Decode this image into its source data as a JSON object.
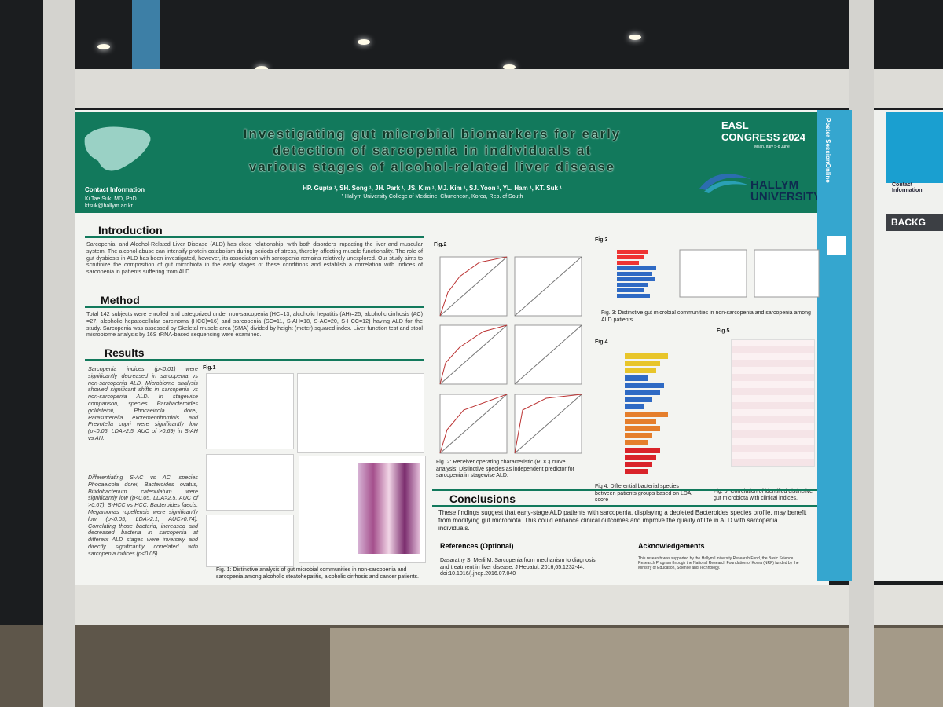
{
  "header": {
    "title_lines": [
      "Investigating gut microbial biomarkers for early",
      "detection of sarcopenia in individuals at",
      "various stages of alcohol-related liver disease"
    ],
    "authors": "HP. Gupta ¹, SH. Song ¹, JH. Park ¹, JS. Kim ¹, MJ. Kim ¹, SJ. Yoon ¹, YL. Ham ¹, KT. Suk ¹",
    "affiliation": "¹ Hallym University College of Medicine, Chuncheon, Korea, Rep. of South",
    "contact_heading": "Contact Information",
    "contact_lines": [
      "Ki Tae Suk, MD, PhD.",
      "ktsuk@hallym.ac.kr"
    ],
    "congress": "EASL CONGRESS 2024",
    "congress_place": "Milan, Italy 5-8 June",
    "university": "HALLYM UNIVERSITY"
  },
  "side_strip": "Poster SessionOnline",
  "introduction": {
    "heading": "Introduction",
    "text": "Sarcopenia, and Alcohol-Related Liver Disease (ALD) has close relationship, with both disorders impacting the liver and muscular system. The alcohol abuse can intensify protein catabolism during periods of stress, thereby affecting muscle functionality. The role of gut dysbiosis in ALD has been investigated, however, its association with sarcopenia remains relatively unexplored. Our study aims to scrutinize the composition of gut microbiota in the early stages of these conditions and establish a correlation with indices of sarcopenia in patients suffering from ALD."
  },
  "method": {
    "heading": "Method",
    "text": "Total 142 subjects were enrolled and categorized under non-sarcopenia (HC=13, alcoholic hepatitis (AH)=25, alcoholic cirrhosis (AC) =27, alcoholic hepatocellular carcinoma (HCC)=16) and sarcopenia (SC=11, S-AH=18, S-AC=20, S-HCC=12) having ALD for the study. Sarcopenia was assessed by Skeletal muscle area (SMA) divided by height (meter) squared index. Liver function test and stool microbiome analysis by 16S rRNA-based sequencing were examined."
  },
  "results": {
    "heading": "Results",
    "paragraphs": [
      "Sarcopenia indices (p<0.01) were significantly decreased in sarcopenia vs non-sarcopenia ALD. Microbiome analysis showed significant shifts in sarcopenia vs non-sarcopenia ALD. In stagewise comparison, species Parabacteroides goldsteinii, Phocaeicola dorei, Parasutterella excrementihominis and Prevotella copri were significantly low (p<0.05, LDA>2.5, AUC of >0.69) in S-AH vs AH.",
      "Differentiating S-AC vs AC, species Phocaeicola dorei, Bacteroides ovatus, Bifidobacterium catenulatum were significantly low (p<0.05, LDA>2.5, AUC of >0.67). S-HCC vs HCC, Bacteroides faecis, Megamonas rupellensis were significantly low (p<0.05, LDA>2.1, AUC>0.74). Correlating those bacteria, increased and decreased bacteria in sarcopenia at different ALD stages were inversely and directly significantly correlated with sarcopenia indices (p<0.05).."
    ]
  },
  "figures": [
    {
      "label": "Fig.1",
      "caption": "Fig. 1: Distinctive analysis of gut microbial communities in non-sarcopenia and sarcopenia among alcoholic steatohepatitis, alcoholic cirrhosis and cancer patients."
    },
    {
      "label": "Fig.2",
      "caption": "Fig. 2: Receiver operating characteristic (ROC) curve analysis: Distinctive species as independent predictor for sarcopenia in stagewise ALD."
    },
    {
      "label": "Fig.3",
      "caption": "Fig. 3: Distinctive gut microbial communities in non-sarcopenia and sarcopenia among ALD patients."
    },
    {
      "label": "Fig.4",
      "caption": "Fig 4: Differential bacterial species between patients groups based on LDA score"
    },
    {
      "label": "Fig.5",
      "caption": "Fig. 5: Correlation of identified distinctive gut microbiota with clinical indices."
    }
  ],
  "conclusions": {
    "heading": "Conclusions",
    "text": "These findings suggest that early-stage ALD patients with sarcopenia, displaying a depleted Bacteroides species profile, may benefit from modifying gut microbiota. This could enhance clinical outcomes and improve the quality of life in ALD with sarcopenia individuals."
  },
  "references": {
    "heading": "References (Optional)",
    "text": "Dasarathy S, Merli M. Sarcopenia from mechanism to diagnosis and treatment in liver disease. J Hepatol. 2016;65:1232-44. doi:10.1016/j.jhep.2016.07.040"
  },
  "acknowledgements": {
    "heading": "Acknowledgements",
    "text": "This research was supported by the Hallym University Research Fund, the Basic Science Research Program through the National Research Foundation of Korea (NRF) funded by the Ministry of Education, Science and Technology."
  },
  "next_poster": {
    "contact_heading": "Contact Information",
    "section_heading": "BACKG"
  }
}
